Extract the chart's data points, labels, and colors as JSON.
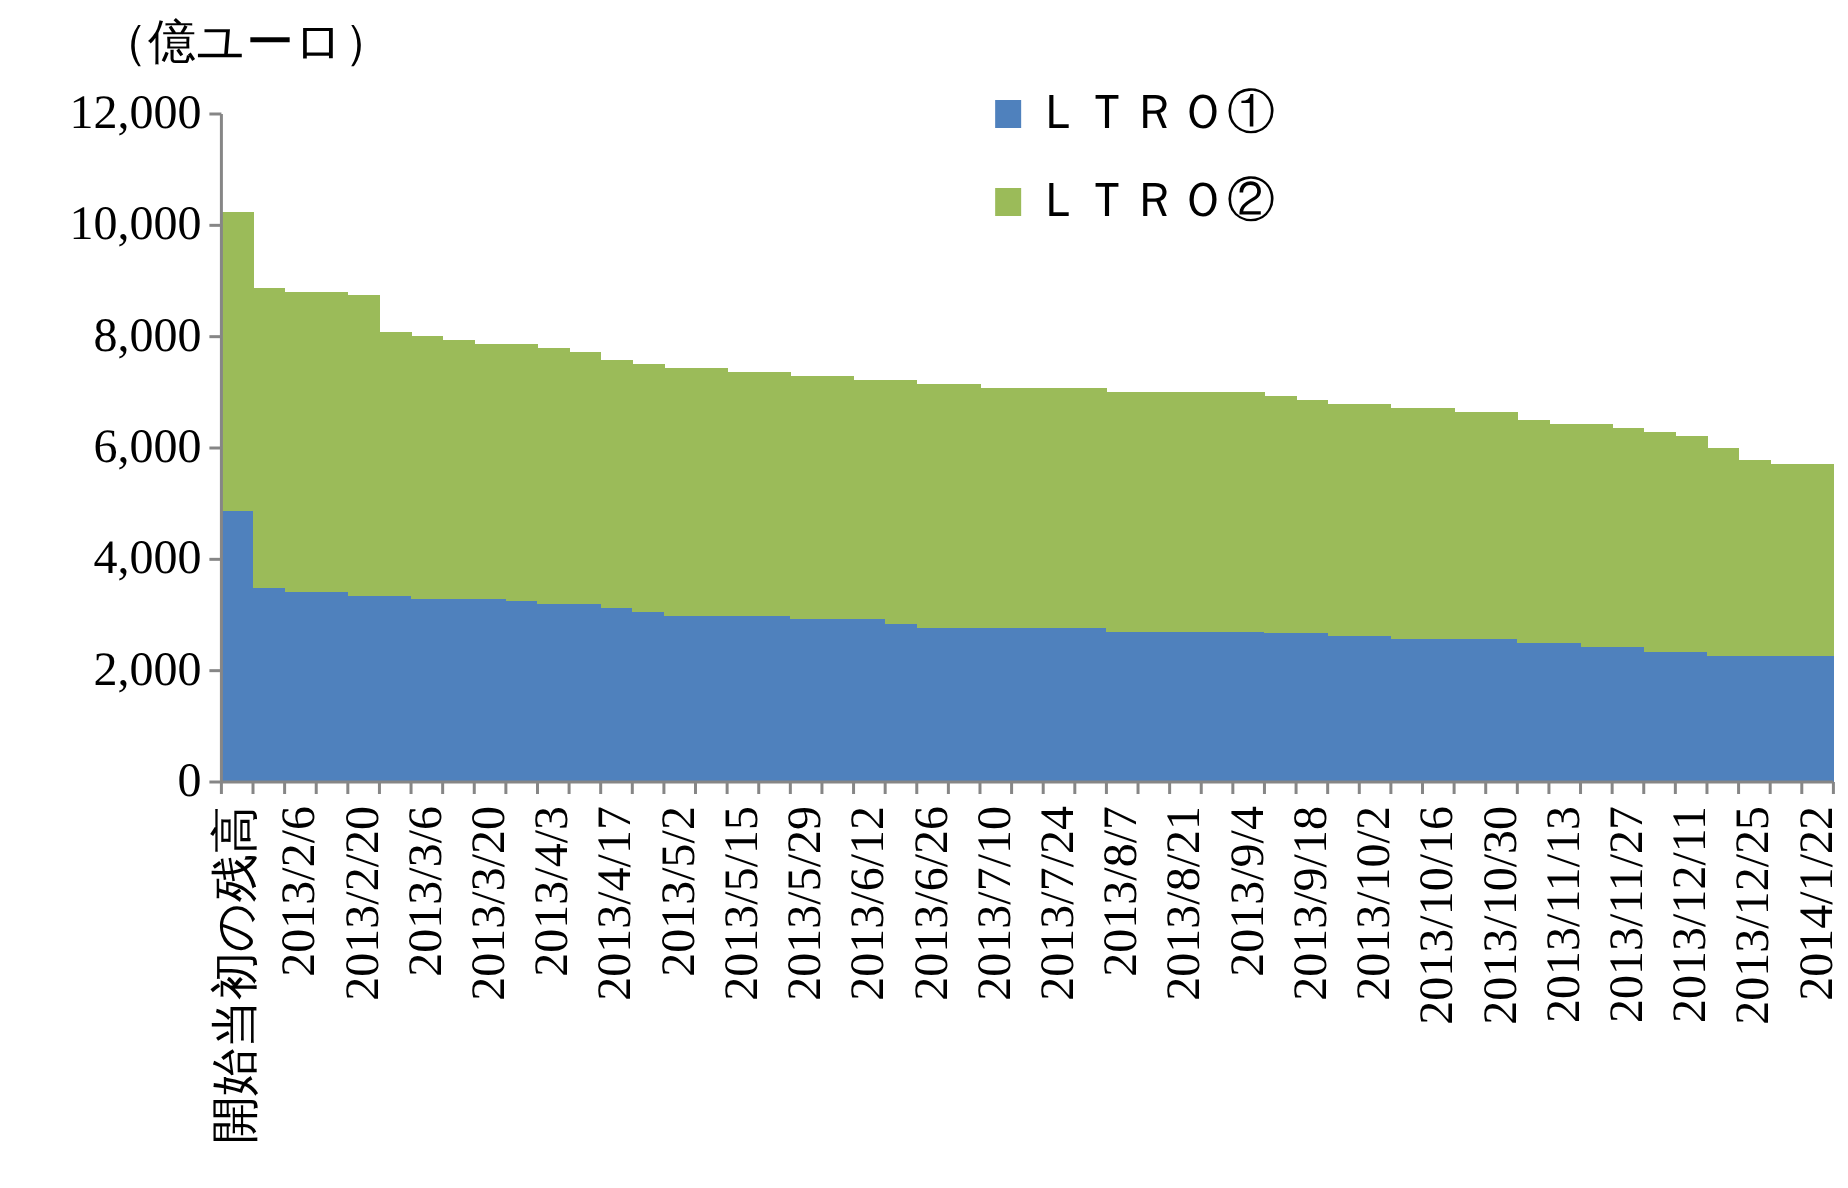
{
  "chart_data": {
    "type": "bar",
    "stacked": true,
    "ylabel": "（億ユーロ）",
    "categories": [
      "開始当初の残高",
      null,
      "2013/2/6",
      null,
      "2013/2/20",
      null,
      "2013/3/6",
      null,
      "2013/3/20",
      null,
      "2013/4/3",
      null,
      "2013/4/17",
      null,
      "2013/5/2",
      null,
      "2013/5/15",
      null,
      "2013/5/29",
      null,
      "2013/6/12",
      null,
      "2013/6/26",
      null,
      "2013/7/10",
      null,
      "2013/7/24",
      null,
      "2013/8/7",
      null,
      "2013/8/21",
      null,
      "2013/9/4",
      null,
      "2013/9/18",
      null,
      "2013/10/2",
      null,
      "2013/10/16",
      null,
      "2013/10/30",
      null,
      "2013/11/13",
      null,
      "2013/11/27",
      null,
      "2013/12/11",
      null,
      "2013/12/25",
      null,
      "2014/1/22"
    ],
    "series": [
      {
        "name": "ＬＴＲＯ①",
        "color": "#4f81bd",
        "values": [
          4860,
          3480,
          3410,
          3410,
          3350,
          3340,
          3280,
          3280,
          3280,
          3260,
          3190,
          3190,
          3120,
          3050,
          2990,
          2990,
          2990,
          2990,
          2920,
          2920,
          2920,
          2840,
          2770,
          2770,
          2770,
          2770,
          2770,
          2770,
          2700,
          2700,
          2700,
          2700,
          2700,
          2680,
          2680,
          2620,
          2620,
          2560,
          2560,
          2560,
          2560,
          2500,
          2500,
          2420,
          2420,
          2340,
          2340,
          2270,
          2270,
          2270,
          2270
        ]
      },
      {
        "name": "ＬＴＲＯ②",
        "color": "#9bbb59",
        "values": [
          5380,
          5400,
          5400,
          5400,
          5390,
          4750,
          4740,
          4660,
          4590,
          4610,
          4610,
          4540,
          4460,
          4460,
          4450,
          4450,
          4380,
          4380,
          4380,
          4380,
          4300,
          4380,
          4380,
          4380,
          4310,
          4310,
          4310,
          4310,
          4310,
          4310,
          4310,
          4310,
          4310,
          4260,
          4180,
          4170,
          4170,
          4160,
          4160,
          4090,
          4090,
          4000,
          3930,
          4010,
          3940,
          3950,
          3880,
          3730,
          3510,
          3440,
          3440
        ]
      }
    ],
    "ylim": [
      0,
      12000
    ],
    "yticks": [
      {
        "value": 0,
        "label": "0"
      },
      {
        "value": 2000,
        "label": "2,000"
      },
      {
        "value": 4000,
        "label": "4,000"
      },
      {
        "value": 6000,
        "label": "6,000"
      },
      {
        "value": 8000,
        "label": "8,000"
      },
      {
        "value": 10000,
        "label": "10,000"
      },
      {
        "value": 12000,
        "label": "12,000"
      }
    ],
    "legend": "top"
  }
}
